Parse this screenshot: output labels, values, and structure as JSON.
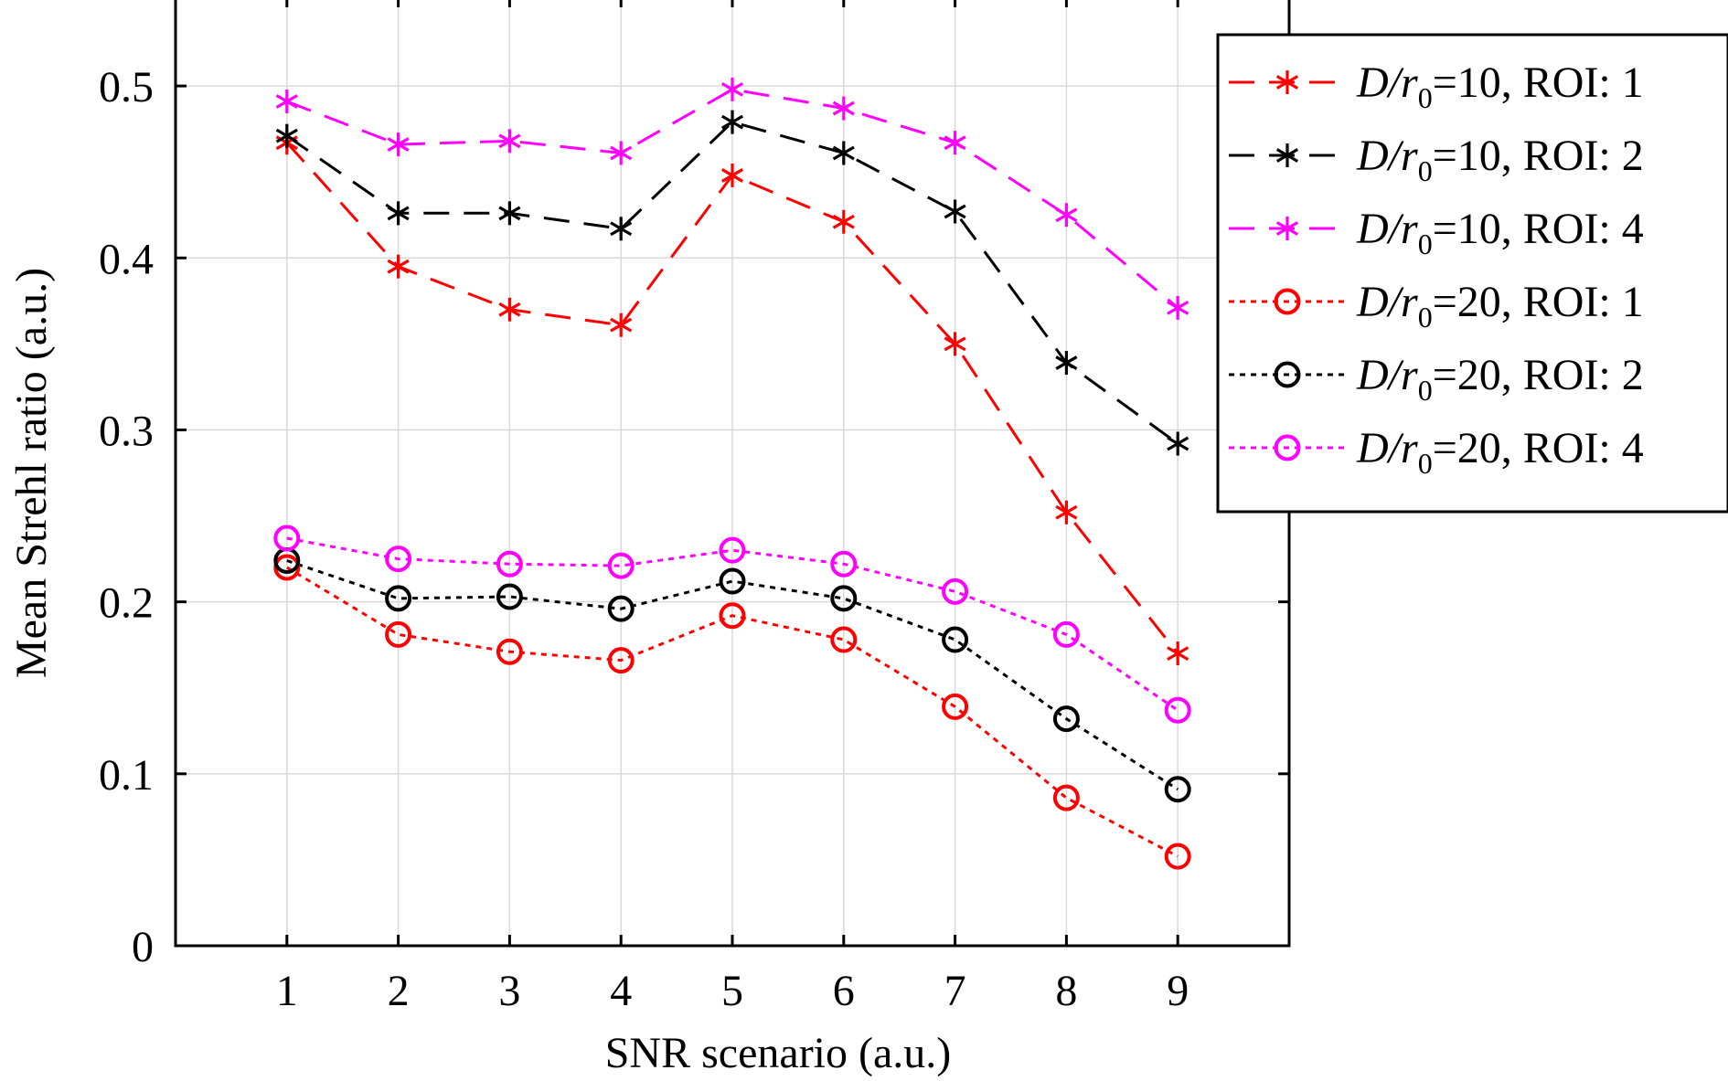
{
  "chart_data": {
    "type": "line",
    "title": "",
    "xlabel": "SNR scenario (a.u.)",
    "ylabel": "Mean Strehl ratio (a.u.)",
    "xlim": [
      0,
      10
    ],
    "ylim": [
      0,
      0.55
    ],
    "x": [
      1,
      2,
      3,
      4,
      5,
      6,
      7,
      8,
      9
    ],
    "x_ticks": [
      "1",
      "2",
      "3",
      "4",
      "5",
      "6",
      "7",
      "8",
      "9"
    ],
    "y_ticks": [
      0,
      0.1,
      0.2,
      0.3,
      0.4,
      0.5
    ],
    "y_tick_labels": [
      "0",
      "0.1",
      "0.2",
      "0.3",
      "0.4",
      "0.5"
    ],
    "grid": true,
    "legend_position": "top-right, outside",
    "series": [
      {
        "label_prefix": "D/r",
        "label_sub": "0",
        "label_suffix": "=10, ROI: 1",
        "color": "#ff0000",
        "marker": "asterisk",
        "line": "dashed",
        "values": [
          0.467,
          0.395,
          0.37,
          0.361,
          0.448,
          0.421,
          0.35,
          0.252,
          0.17
        ]
      },
      {
        "label_prefix": "D/r",
        "label_sub": "0",
        "label_suffix": "=10, ROI: 2",
        "color": "#000000",
        "marker": "asterisk",
        "line": "dashed",
        "values": [
          0.471,
          0.426,
          0.426,
          0.417,
          0.479,
          0.461,
          0.427,
          0.339,
          0.292
        ]
      },
      {
        "label_prefix": "D/r",
        "label_sub": "0",
        "label_suffix": "=10, ROI: 4",
        "color": "#ff00ff",
        "marker": "asterisk",
        "line": "dashed",
        "values": [
          0.491,
          0.466,
          0.468,
          0.461,
          0.498,
          0.487,
          0.467,
          0.425,
          0.371
        ]
      },
      {
        "label_prefix": "D/r",
        "label_sub": "0",
        "label_suffix": "=20, ROI: 1",
        "color": "#ff0000",
        "marker": "circle",
        "line": "dotted",
        "values": [
          0.22,
          0.181,
          0.171,
          0.166,
          0.192,
          0.178,
          0.139,
          0.086,
          0.052
        ]
      },
      {
        "label_prefix": "D/r",
        "label_sub": "0",
        "label_suffix": "=20, ROI: 2",
        "color": "#000000",
        "marker": "circle",
        "line": "dotted",
        "values": [
          0.224,
          0.202,
          0.203,
          0.196,
          0.212,
          0.202,
          0.178,
          0.132,
          0.091
        ]
      },
      {
        "label_prefix": "D/r",
        "label_sub": "0",
        "label_suffix": "=20, ROI: 4",
        "color": "#ff00ff",
        "marker": "circle",
        "line": "dotted",
        "values": [
          0.237,
          0.225,
          0.222,
          0.221,
          0.23,
          0.222,
          0.206,
          0.181,
          0.137
        ]
      }
    ]
  }
}
